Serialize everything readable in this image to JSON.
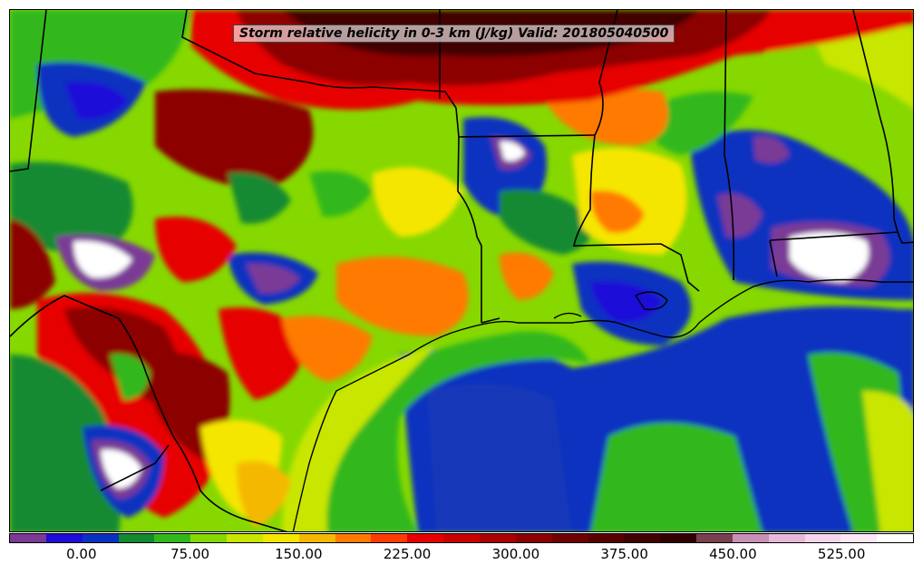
{
  "title": "Storm relative helicity in 0-3 km (J/kg) Valid: 201805040500",
  "colorbar": {
    "colors": [
      "#7a3a96",
      "#1e0dd8",
      "#0a32c0",
      "#128a30",
      "#33b81c",
      "#86d800",
      "#c8e600",
      "#f5e600",
      "#f5b800",
      "#ff7a00",
      "#ff3c00",
      "#e60000",
      "#c80000",
      "#aa0000",
      "#8c0000",
      "#700000",
      "#580000",
      "#420000",
      "#300000",
      "#7a4050",
      "#c890b4",
      "#e8b8dc",
      "#f6d6ee",
      "#fbe8f6",
      "#ffffff"
    ],
    "tick_labels": [
      "0.00",
      "75.00",
      "150.00",
      "225.00",
      "300.00",
      "375.00",
      "450.00",
      "525.00"
    ],
    "tick_values": [
      0,
      75,
      150,
      225,
      300,
      375,
      450,
      525
    ],
    "min": -50,
    "max": 575
  },
  "map_colors": {
    "ocean_blue": "#0a32c0",
    "violet": "#1e0dd8",
    "purple": "#7a3a96",
    "dark_green": "#128a30",
    "green": "#33b81c",
    "lime": "#86d800",
    "yellow": "#f5e600",
    "orange": "#ff7a00",
    "red": "#e60000",
    "dark_red": "#8c0000",
    "very_dark_red": "#420000",
    "white": "#ffffff"
  }
}
